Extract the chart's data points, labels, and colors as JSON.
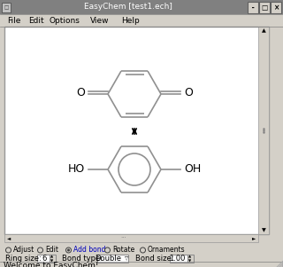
{
  "title": "EasyChem [test1.ech]",
  "bg_color": "#d4d0c8",
  "canvas_color": "#ffffff",
  "menu_items": [
    "File",
    "Edit",
    "Options",
    "View",
    "Help"
  ],
  "menu_x": [
    8,
    32,
    56,
    102,
    137
  ],
  "radio_labels": [
    "Adjust",
    "Edit",
    "Add bonds",
    "Rotate",
    "Ornaments"
  ],
  "radio_selected": 2,
  "ring_size": "6",
  "bond_type": "Double",
  "bond_size": "1.00",
  "status_bar": "Welcome to EasyChem!",
  "bond_color": "#909090",
  "bond_lw": 1.2,
  "text_color": "#000000",
  "blue_text": "#0000bb",
  "title_bar_bg": "#808080",
  "canvas_border": "#aaaaaa"
}
